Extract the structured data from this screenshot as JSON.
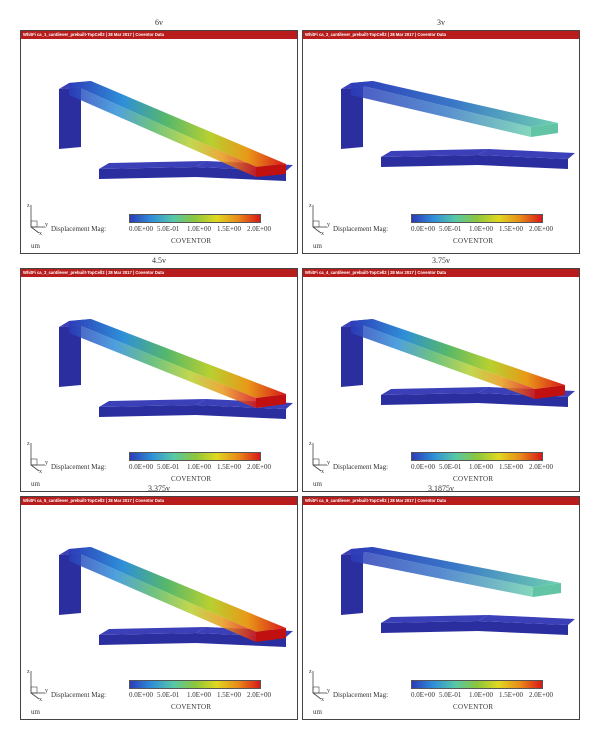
{
  "panels": [
    {
      "voltage": "6v",
      "titlebar": "WhitFi ca_1_cantilever_prebuilt-TopCell2 | 28 Mar 2017 | Coventor Data",
      "beam_color": "gradient-full"
    },
    {
      "voltage": "3v",
      "titlebar": "WhitFi ca_2_cantilever_prebuilt-TopCell2 | 28 Mar 2017 | Coventor Data",
      "beam_color": "gradient-low"
    },
    {
      "voltage": "4.5v",
      "titlebar": "WhitFi ca_3_cantilever_prebuilt-TopCell2 | 28 Mar 2017 | Coventor Data",
      "beam_color": "gradient-full"
    },
    {
      "voltage": "3.75v",
      "titlebar": "WhitFi ca_4_cantilever_prebuilt-TopCell2 | 28 Mar 2017 | Coventor Data",
      "beam_color": "gradient-full"
    },
    {
      "voltage": "3.375v",
      "titlebar": "WhitFi ca_5_cantilever_prebuilt-TopCell2 | 28 Mar 2017 | Coventor Data",
      "beam_color": "gradient-full"
    },
    {
      "voltage": "3.1875v",
      "titlebar": "WhitFi ca_6_cantilever_prebuilt-TopCell2 | 28 Mar 2017 | Coventor Data",
      "beam_color": "gradient-low"
    }
  ],
  "legend": {
    "label": "Displacement Mag:",
    "unit": "um",
    "brand": "COVENTOR",
    "ticks": [
      "0.0E+00",
      "5.0E-01",
      "1.0E+00",
      "1.5E+00",
      "2.0E+00"
    ],
    "colors": [
      "#2c3cb8",
      "#2f8fd8",
      "#56c8a8",
      "#8cc63c",
      "#e0d820",
      "#e88a18",
      "#d81818"
    ]
  },
  "axes_labels": {
    "z": "z",
    "y": "y",
    "x": "x"
  }
}
